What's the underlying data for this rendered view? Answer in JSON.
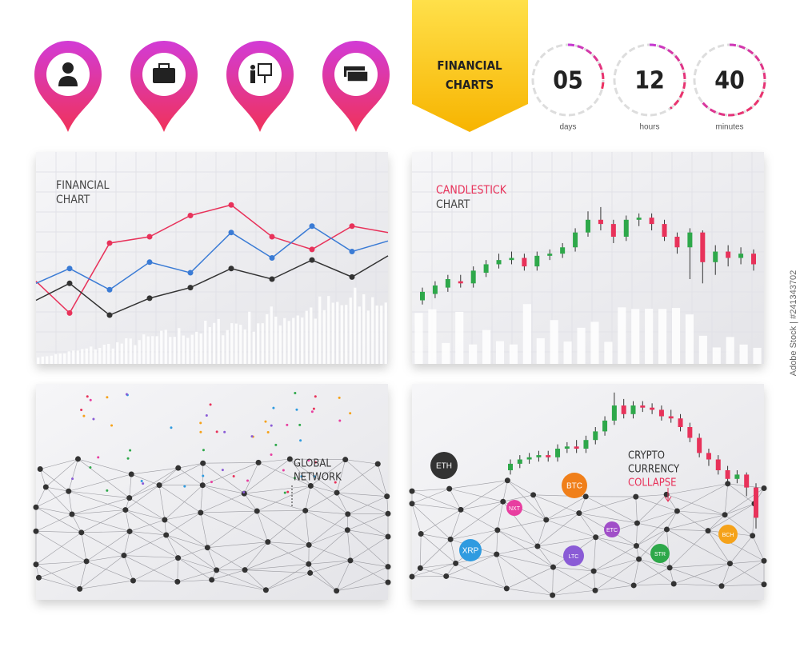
{
  "ribbon": {
    "title": "FINANCIAL CHARTS"
  },
  "timers": [
    {
      "value": "05",
      "unit": "days"
    },
    {
      "value": "12",
      "unit": "hours"
    },
    {
      "value": "40",
      "unit": "minutes"
    }
  ],
  "line_panel": {
    "title_line1": "FINANCIAL",
    "title_line2": "CHART",
    "chart_data": {
      "type": "line",
      "series": [
        {
          "color": "#e8325a",
          "values": [
            39,
            24,
            57,
            60,
            70,
            75,
            60,
            54,
            65,
            62
          ]
        },
        {
          "color": "#3a7bd5",
          "values": [
            38,
            45,
            35,
            48,
            43,
            62,
            50,
            65,
            53,
            58
          ]
        },
        {
          "color": "#333333",
          "values": [
            30,
            38,
            23,
            31,
            36,
            45,
            40,
            49,
            41,
            51
          ]
        }
      ]
    }
  },
  "candle_panel": {
    "title_line1": "CANDLESTICK",
    "title_line2": "CHART",
    "chart_data": {
      "type": "candlestick",
      "up_color": "#2ea84a",
      "down_color": "#e8325a",
      "candles": [
        [
          30,
          34,
          28,
          36
        ],
        [
          33,
          37,
          31,
          39
        ],
        [
          36,
          40,
          34,
          42
        ],
        [
          39,
          38,
          36,
          42
        ],
        [
          38,
          44,
          36,
          46
        ],
        [
          43,
          47,
          41,
          49
        ],
        [
          47,
          49,
          45,
          52
        ],
        [
          49,
          50,
          47,
          53
        ],
        [
          50,
          46,
          44,
          52
        ],
        [
          46,
          51,
          44,
          53
        ],
        [
          51,
          52,
          49,
          54
        ],
        [
          52,
          55,
          50,
          57
        ],
        [
          55,
          62,
          53,
          64
        ],
        [
          62,
          68,
          60,
          72
        ],
        [
          68,
          66,
          63,
          74
        ],
        [
          66,
          60,
          57,
          68
        ],
        [
          60,
          68,
          58,
          70
        ],
        [
          68,
          69,
          65,
          71
        ],
        [
          69,
          66,
          63,
          71
        ],
        [
          66,
          60,
          58,
          68
        ],
        [
          60,
          55,
          52,
          62
        ],
        [
          55,
          62,
          40,
          64
        ],
        [
          62,
          48,
          38,
          63
        ],
        [
          48,
          53,
          42,
          56
        ],
        [
          53,
          50,
          46,
          56
        ],
        [
          50,
          52,
          47,
          55
        ],
        [
          52,
          47,
          44,
          54
        ]
      ]
    }
  },
  "network_panel": {
    "title_line1": "GLOBAL",
    "title_line2": "NETWORK"
  },
  "crypto_panel": {
    "title_line1": "CRYPTO",
    "title_line2": "CURRENCY",
    "title_line3": "COLLAPSE",
    "chart_data": {
      "type": "candlestick",
      "up_color": "#2ea84a",
      "down_color": "#e8325a",
      "candles": [
        [
          60,
          63,
          58,
          65
        ],
        [
          63,
          65,
          61,
          67
        ],
        [
          65,
          66,
          63,
          68
        ],
        [
          66,
          67,
          64,
          69
        ],
        [
          67,
          66,
          64,
          69
        ],
        [
          66,
          70,
          64,
          72
        ],
        [
          70,
          71,
          68,
          73
        ],
        [
          71,
          70,
          68,
          74
        ],
        [
          70,
          74,
          68,
          76
        ],
        [
          74,
          78,
          72,
          80
        ],
        [
          78,
          83,
          76,
          85
        ],
        [
          83,
          90,
          81,
          96
        ],
        [
          90,
          86,
          84,
          93
        ],
        [
          86,
          90,
          84,
          92
        ],
        [
          90,
          89,
          87,
          92
        ],
        [
          89,
          88,
          86,
          91
        ],
        [
          88,
          85,
          83,
          90
        ],
        [
          85,
          84,
          82,
          88
        ],
        [
          84,
          80,
          78,
          86
        ],
        [
          80,
          75,
          73,
          82
        ],
        [
          75,
          68,
          66,
          77
        ],
        [
          68,
          65,
          62,
          70
        ],
        [
          65,
          60,
          58,
          67
        ],
        [
          60,
          56,
          54,
          62
        ],
        [
          56,
          58,
          54,
          60
        ],
        [
          58,
          52,
          48,
          59
        ],
        [
          52,
          38,
          33,
          54
        ]
      ]
    },
    "coins": [
      {
        "label": "ETH",
        "color": "#333333"
      },
      {
        "label": "BTC",
        "color": "#f07f1a"
      },
      {
        "label": "NXT",
        "color": "#e83ea0"
      },
      {
        "label": "XRP",
        "color": "#2f9be0"
      },
      {
        "label": "LTC",
        "color": "#8a5bd6"
      },
      {
        "label": "ETC",
        "color": "#a04ec8"
      },
      {
        "label": "STR",
        "color": "#2ea84a"
      },
      {
        "label": "BCH",
        "color": "#f5a21a"
      }
    ]
  },
  "watermark": "Adobe Stock | #241343702"
}
